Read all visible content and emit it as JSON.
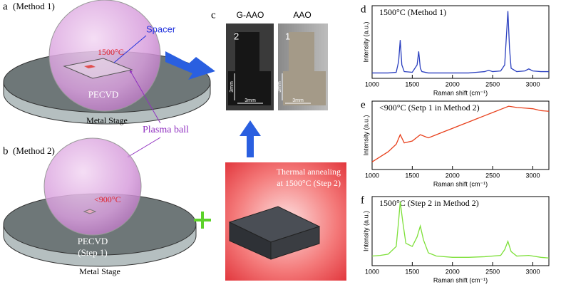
{
  "figure": {
    "panel_a": {
      "letter": "a",
      "method": "(Method 1)",
      "spacer": "Spacer",
      "temperature": "1500°C",
      "reactor": "PECVD",
      "stage": "Metal Stage",
      "plasma": "Plasma ball"
    },
    "panel_b": {
      "letter": "b",
      "method": "(Method 2)",
      "temperature": "<900°C",
      "reactor": "PECVD",
      "step": "(Step 1)",
      "stage": "Metal Stage"
    },
    "panel_c": {
      "letter": "c",
      "samples": [
        {
          "name": "G-AAO",
          "number": "2",
          "scale_v": "3mm",
          "scale_h": "3mm"
        },
        {
          "name": "AAO",
          "number": "1",
          "scale_v": "3mm",
          "scale_h": "3mm"
        }
      ],
      "annealing": [
        "Thermal annealing",
        "at 1500°C (Step 2)"
      ]
    }
  },
  "chart_data": [
    {
      "type": "line",
      "panel": "d",
      "title": "1500°C  (Method 1)",
      "x_label": "Raman shift (cm⁻¹)",
      "y_label": "Intensity (a.u.)",
      "x": [
        1000,
        1100,
        1200,
        1300,
        1330,
        1350,
        1370,
        1400,
        1500,
        1560,
        1580,
        1600,
        1620,
        1700,
        1800,
        1900,
        2000,
        2100,
        2200,
        2300,
        2400,
        2450,
        2500,
        2600,
        2650,
        2670,
        2690,
        2710,
        2730,
        2800,
        2900,
        2950,
        3000,
        3100,
        3200
      ],
      "series": [
        {
          "color": "#2a3fbf",
          "values": [
            0.08,
            0.08,
            0.08,
            0.09,
            0.25,
            0.57,
            0.2,
            0.1,
            0.09,
            0.2,
            0.4,
            0.15,
            0.1,
            0.08,
            0.08,
            0.08,
            0.08,
            0.08,
            0.08,
            0.09,
            0.1,
            0.12,
            0.1,
            0.11,
            0.2,
            0.6,
            1.0,
            0.45,
            0.15,
            0.1,
            0.11,
            0.14,
            0.11,
            0.1,
            0.1
          ]
        }
      ],
      "xlim": [
        1000,
        3200
      ],
      "ylim": [
        0,
        1.08
      ],
      "xticks": [
        1000,
        1500,
        2000,
        2500,
        3000
      ]
    },
    {
      "type": "line",
      "panel": "e",
      "title": "<900°C  (Setp 1 in Method 2)",
      "x_label": "Raman shift (cm⁻¹)",
      "y_label": "Intensity (a.u.)",
      "x": [
        1000,
        1100,
        1200,
        1300,
        1350,
        1400,
        1500,
        1600,
        1700,
        1800,
        1900,
        2000,
        2100,
        2200,
        2300,
        2400,
        2500,
        2600,
        2700,
        2800,
        2900,
        3000,
        3100,
        3200
      ],
      "series": [
        {
          "color": "#e8401c",
          "values": [
            0.12,
            0.2,
            0.28,
            0.4,
            0.55,
            0.42,
            0.45,
            0.55,
            0.5,
            0.55,
            0.6,
            0.65,
            0.7,
            0.75,
            0.8,
            0.85,
            0.9,
            0.95,
            1.0,
            0.98,
            0.97,
            0.96,
            0.93,
            0.92
          ]
        }
      ],
      "xlim": [
        1000,
        3200
      ],
      "ylim": [
        0,
        1.08
      ],
      "xticks": [
        1000,
        1500,
        2000,
        2500,
        3000
      ]
    },
    {
      "type": "line",
      "panel": "f",
      "title": "1500°C  (Step 2 in Method 2)",
      "x_label": "Raman shift (cm⁻¹)",
      "y_label": "Intensity (a.u.)",
      "x": [
        1000,
        1100,
        1200,
        1300,
        1330,
        1350,
        1380,
        1420,
        1500,
        1560,
        1600,
        1640,
        1700,
        1800,
        2000,
        2200,
        2400,
        2600,
        2650,
        2690,
        2730,
        2800,
        2950,
        3100,
        3200
      ],
      "series": [
        {
          "color": "#7ee03a",
          "values": [
            0.15,
            0.16,
            0.18,
            0.3,
            0.7,
            1.0,
            0.7,
            0.35,
            0.3,
            0.45,
            0.62,
            0.4,
            0.2,
            0.15,
            0.13,
            0.13,
            0.14,
            0.16,
            0.25,
            0.38,
            0.22,
            0.15,
            0.16,
            0.13,
            0.12
          ]
        }
      ],
      "xlim": [
        1000,
        3200
      ],
      "ylim": [
        0,
        1.08
      ],
      "xticks": [
        1000,
        1500,
        2000,
        2500,
        3000
      ]
    }
  ]
}
